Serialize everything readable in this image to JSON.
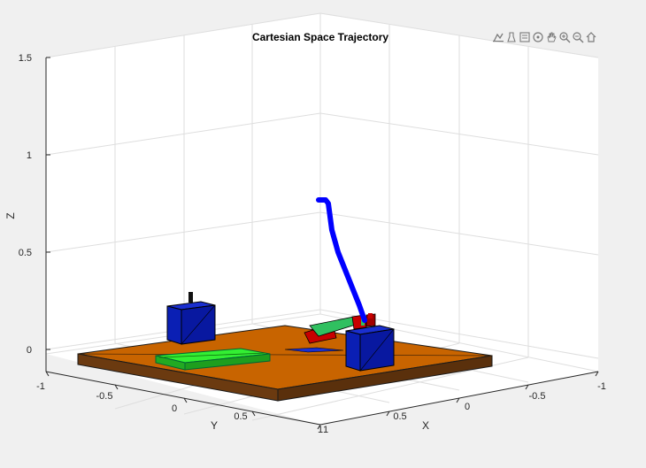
{
  "toolbar": {
    "icons": [
      "data-tip-icon",
      "brush-icon",
      "legend-icon",
      "rotate-3d-icon",
      "pan-hand-icon",
      "zoom-in-icon",
      "zoom-out-icon",
      "home-icon"
    ]
  },
  "chart_data": {
    "type": "3d-scene",
    "title": "Cartesian Space Trajectory",
    "xlabel": "X",
    "ylabel": "Y",
    "zlabel": "Z",
    "x_ticks": [
      "-1",
      "-0.5",
      "0",
      "0.5",
      "1"
    ],
    "y_ticks": [
      "-1",
      "-0.5",
      "0",
      "0.5",
      "1"
    ],
    "z_ticks": [
      "0",
      "0.5",
      "1",
      "1.5"
    ],
    "xlim": [
      -1,
      1
    ],
    "ylim": [
      -1,
      1
    ],
    "zlim": [
      -0.1,
      1.5
    ],
    "grid": true,
    "colors": {
      "platform_top": "#c86400",
      "platform_side": "#6b3a10",
      "green_box": "#22dd22",
      "blue_box": "#0a1fb4",
      "trajectory": "#0000ff",
      "robot_red": "#c80000",
      "robot_green": "#30c060"
    },
    "trajectory": {
      "description_points": [
        [
          0.45,
          -0.15,
          0.78
        ],
        [
          0.43,
          -0.14,
          0.7
        ],
        [
          0.4,
          -0.13,
          0.55
        ],
        [
          0.36,
          -0.12,
          0.38
        ],
        [
          0.32,
          -0.11,
          0.22
        ],
        [
          0.28,
          -0.1,
          0.08
        ]
      ]
    }
  }
}
